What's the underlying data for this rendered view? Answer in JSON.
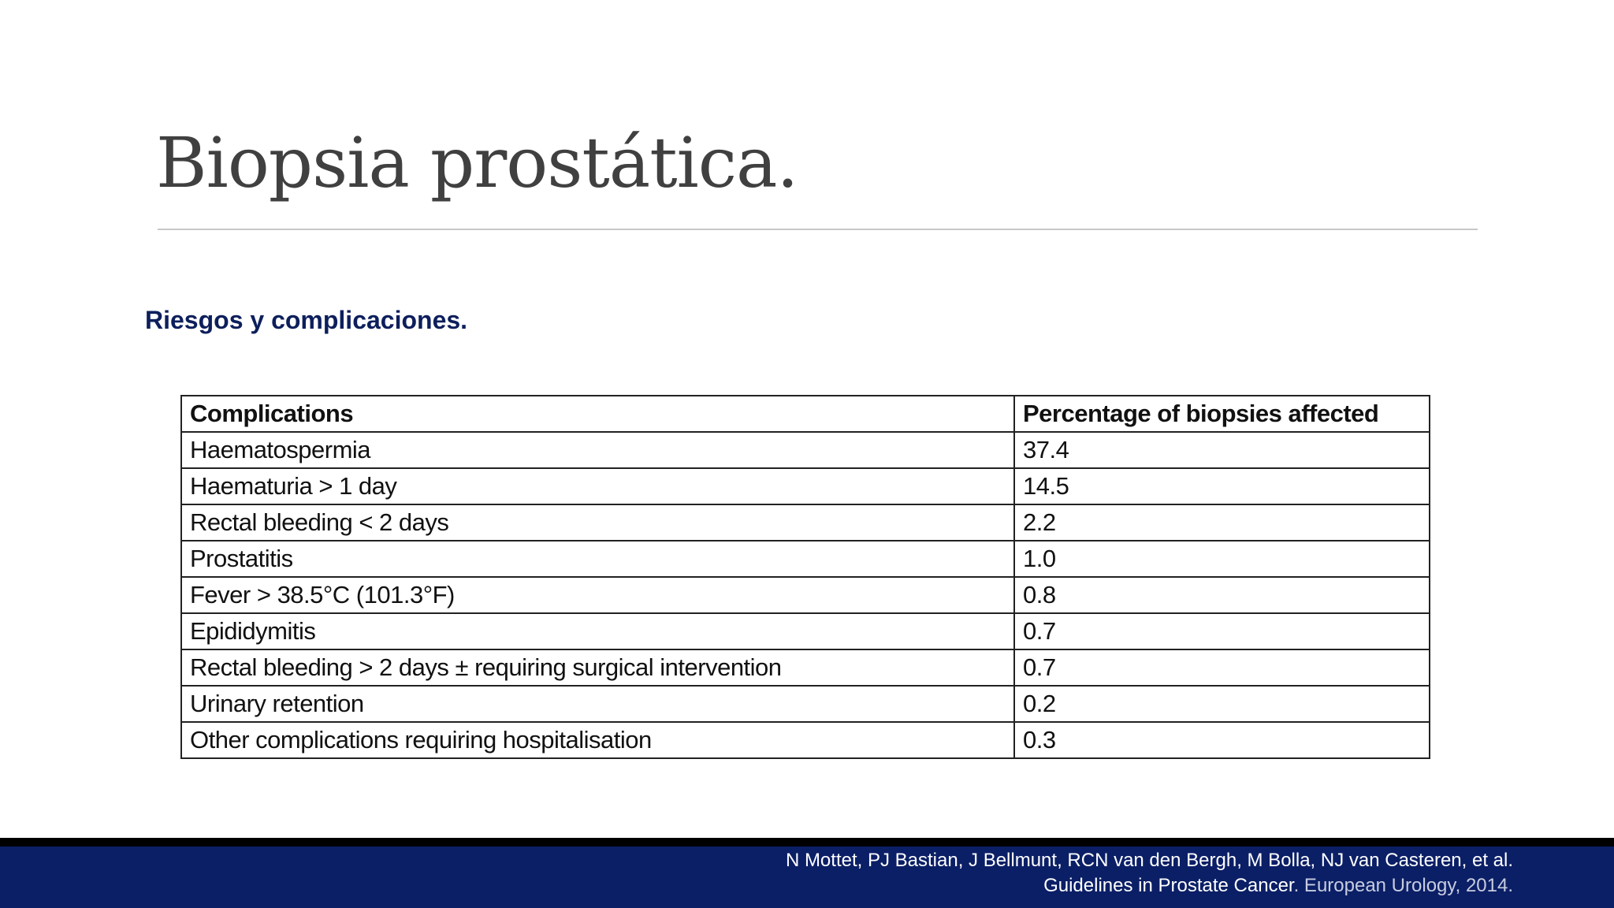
{
  "header": {
    "title": "Biopsia prostática."
  },
  "subtitle": "Riesgos y complicaciones.",
  "table": {
    "columns": [
      "Complications",
      "Percentage of biopsies affected"
    ],
    "rows": [
      [
        "Haematospermia",
        "37.4"
      ],
      [
        "Haematuria > 1 day",
        "14.5"
      ],
      [
        "Rectal bleeding < 2 days",
        "2.2"
      ],
      [
        "Prostatitis",
        "1.0"
      ],
      [
        "Fever > 38.5°C (101.3°F)",
        "0.8"
      ],
      [
        "Epididymitis",
        "0.7"
      ],
      [
        "Rectal bleeding > 2 days ± requiring surgical intervention",
        "0.7"
      ],
      [
        "Urinary retention",
        "0.2"
      ],
      [
        "Other complications requiring hospitalisation",
        "0.3"
      ]
    ]
  },
  "footer": {
    "line1": "N Mottet, PJ Bastian, J Bellmunt, RCN van den Bergh, M Bolla, NJ van Casteren, et al.",
    "line2_title": "Guidelines in Prostate Cancer",
    "line2_source": ". European Urology, 2014."
  }
}
